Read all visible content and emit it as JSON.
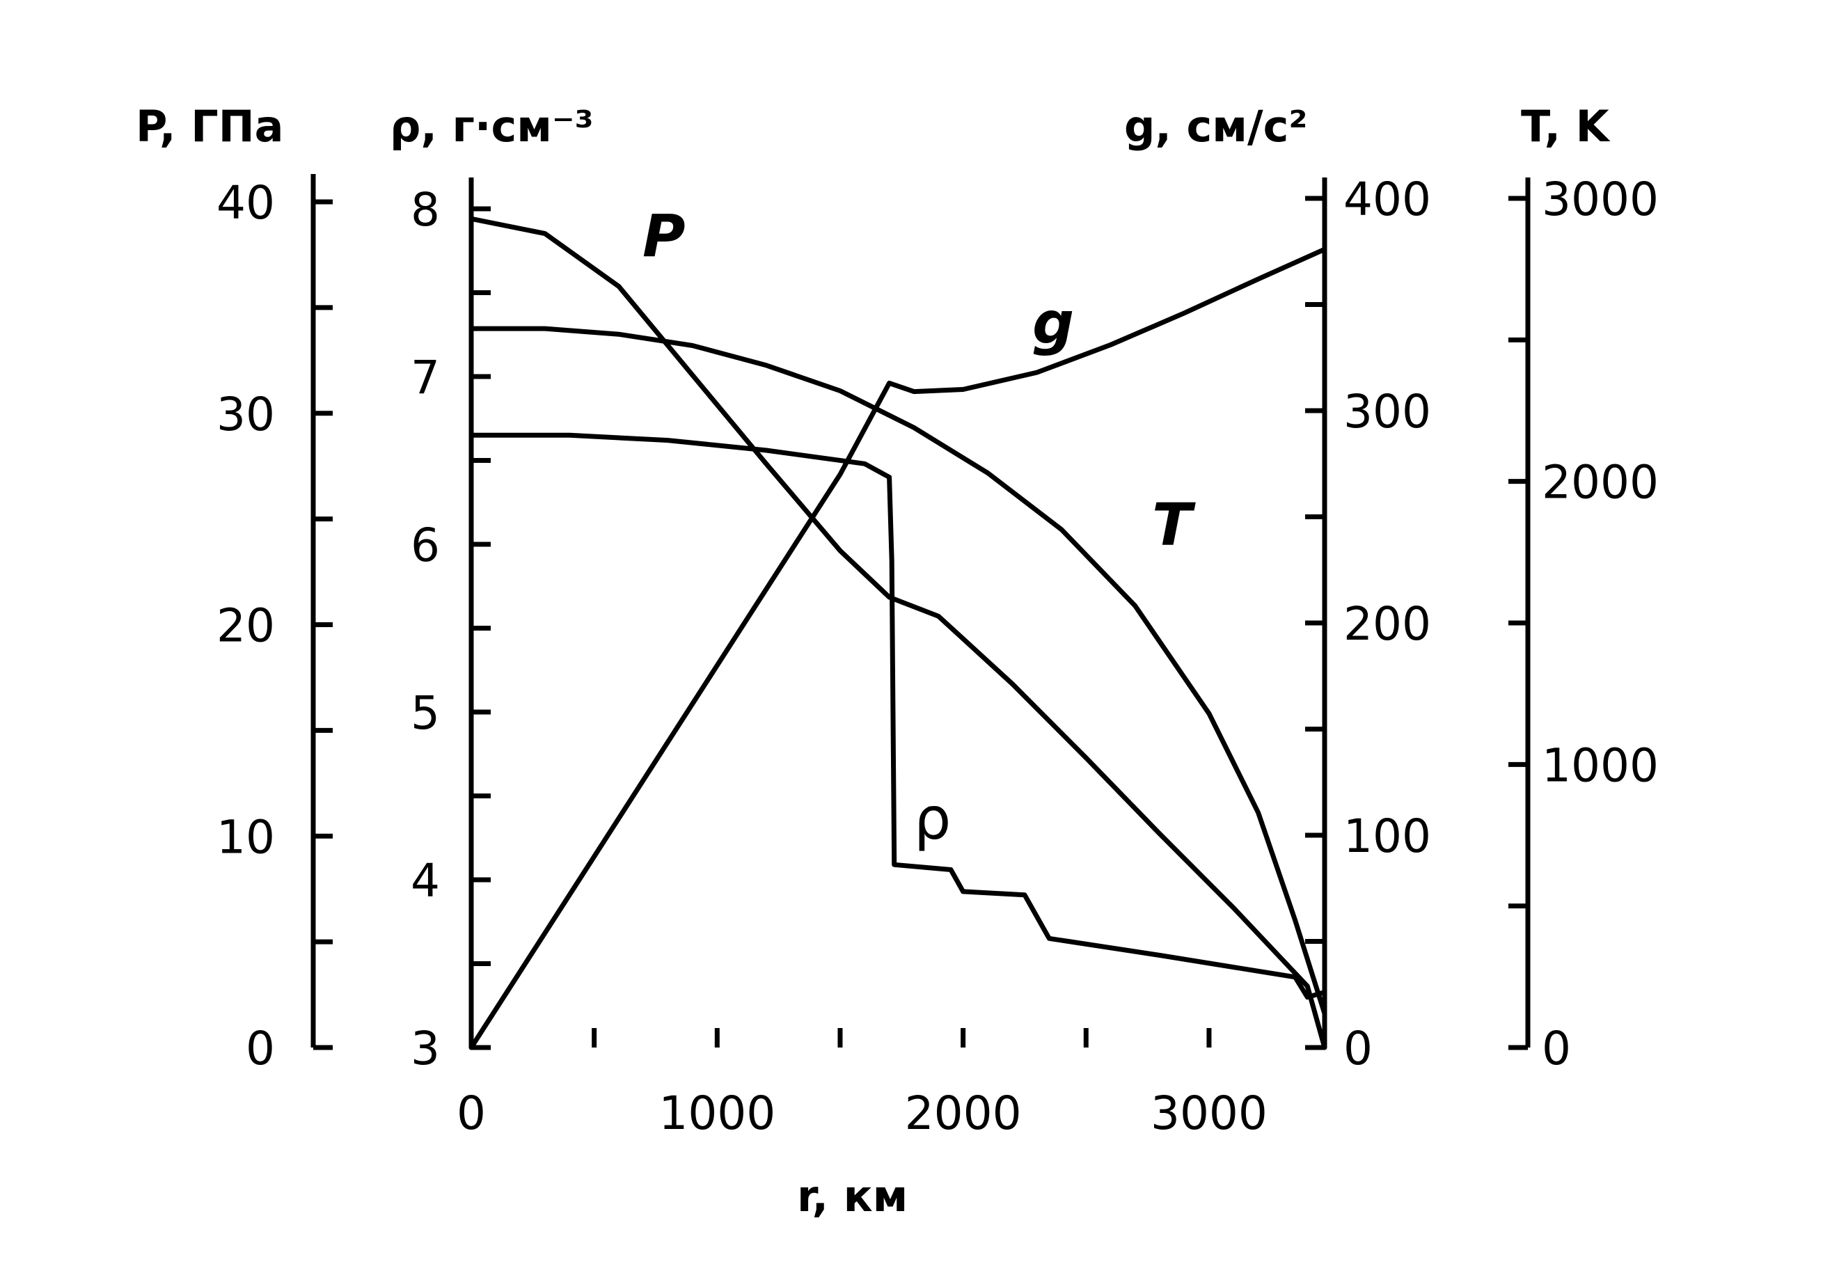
{
  "chart_data": {
    "type": "line",
    "x_axis": {
      "label": "r, км",
      "range": [
        0,
        3470
      ],
      "ticks": [
        0,
        1000,
        2000,
        3000
      ],
      "minor_ticks": [
        500,
        1500,
        2500,
        3500
      ]
    },
    "y_axes": [
      {
        "id": "P",
        "label": "P, ГПа",
        "range": [
          0,
          40
        ],
        "ticks": [
          0,
          10,
          20,
          30,
          40
        ],
        "minor_ticks": [
          5,
          15,
          25,
          35
        ]
      },
      {
        "id": "rho",
        "label": "ρ, г·см⁻³",
        "range": [
          3,
          8
        ],
        "ticks": [
          3,
          4,
          5,
          6,
          7,
          8
        ],
        "minor_ticks": [
          3.5,
          4.5,
          5.5,
          6.5,
          7.5
        ]
      },
      {
        "id": "g",
        "label": "g, см/с²",
        "range": [
          0,
          400
        ],
        "ticks": [
          0,
          100,
          200,
          300,
          400
        ],
        "minor_ticks": [
          50,
          150,
          250,
          350
        ]
      },
      {
        "id": "T",
        "label": "T, K",
        "range": [
          0,
          3000
        ],
        "ticks": [
          0,
          1000,
          2000,
          3000
        ],
        "minor_ticks": [
          500,
          1500,
          2500
        ]
      }
    ],
    "series": [
      {
        "name": "P",
        "axis": "P",
        "points": [
          [
            0,
            39.2
          ],
          [
            300,
            38.5
          ],
          [
            600,
            36.0
          ],
          [
            900,
            31.8
          ],
          [
            1200,
            27.6
          ],
          [
            1500,
            23.5
          ],
          [
            1700,
            21.3
          ],
          [
            1900,
            20.4
          ],
          [
            2200,
            17.2
          ],
          [
            2500,
            13.7
          ],
          [
            2800,
            10.1
          ],
          [
            3100,
            6.6
          ],
          [
            3400,
            2.9
          ],
          [
            3470,
            0
          ]
        ]
      },
      {
        "name": "ρ",
        "axis": "rho",
        "points": [
          [
            0,
            6.65
          ],
          [
            400,
            6.65
          ],
          [
            800,
            6.62
          ],
          [
            1200,
            6.56
          ],
          [
            1600,
            6.48
          ],
          [
            1700,
            6.4
          ],
          [
            1710,
            5.9
          ],
          [
            1720,
            4.09
          ],
          [
            1950,
            4.06
          ],
          [
            2000,
            3.93
          ],
          [
            2250,
            3.91
          ],
          [
            2350,
            3.65
          ],
          [
            2800,
            3.55
          ],
          [
            3350,
            3.42
          ],
          [
            3400,
            3.3
          ],
          [
            3470,
            3.33
          ]
        ]
      },
      {
        "name": "g",
        "axis": "g",
        "points": [
          [
            0,
            0
          ],
          [
            500,
            90
          ],
          [
            1000,
            180
          ],
          [
            1500,
            270
          ],
          [
            1700,
            313
          ],
          [
            1800,
            309
          ],
          [
            2000,
            310
          ],
          [
            2300,
            318
          ],
          [
            2600,
            331
          ],
          [
            2900,
            346
          ],
          [
            3200,
            362
          ],
          [
            3470,
            376
          ]
        ]
      },
      {
        "name": "T",
        "axis": "T",
        "points": [
          [
            0,
            2540
          ],
          [
            300,
            2540
          ],
          [
            600,
            2520
          ],
          [
            900,
            2480
          ],
          [
            1200,
            2410
          ],
          [
            1500,
            2320
          ],
          [
            1800,
            2190
          ],
          [
            2100,
            2030
          ],
          [
            2400,
            1830
          ],
          [
            2700,
            1560
          ],
          [
            3000,
            1180
          ],
          [
            3200,
            830
          ],
          [
            3350,
            450
          ],
          [
            3470,
            120
          ]
        ]
      }
    ],
    "annotations": [
      "P",
      "ρ",
      "g",
      "T"
    ],
    "grid": false,
    "legend": "none"
  }
}
